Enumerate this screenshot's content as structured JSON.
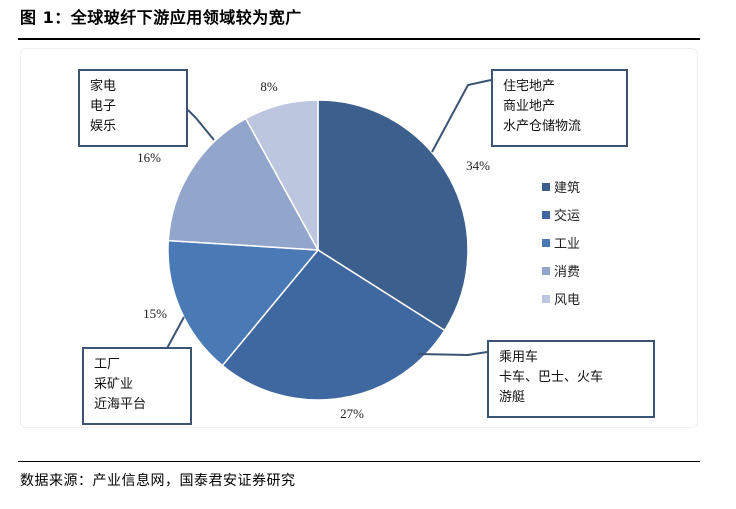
{
  "figure": {
    "title": "图 1：全球玻纤下游应用领域较为宽广",
    "source": "数据来源：产业信息网，国泰君安证券研究"
  },
  "colors": {
    "construction": "#3c5f8e",
    "transport": "#4068a0",
    "industry": "#4a7ab6",
    "consumer": "#92a6cc",
    "wind": "#bcc6de",
    "callout_border": "#3b5375",
    "pie_edge": "#ffffff"
  },
  "chart_data": {
    "type": "pie",
    "title": "",
    "categories": [
      "建筑",
      "交运",
      "工业",
      "消费",
      "风电"
    ],
    "values": [
      34,
      27,
      15,
      16,
      8
    ],
    "labels": [
      "34%",
      "27%",
      "15%",
      "16%",
      "8%"
    ],
    "legend_placement": "right",
    "start_angle": "12 o'clock, clockwise"
  },
  "callouts": {
    "construction": [
      "住宅地产",
      "商业地产",
      "水产仓储物流"
    ],
    "transport": [
      "乘用车",
      "卡车、巴士、火车",
      "游艇"
    ],
    "industry": [
      "工厂",
      "采矿业",
      "近海平台"
    ],
    "consumer": [
      "家电",
      "电子",
      "娱乐"
    ]
  }
}
